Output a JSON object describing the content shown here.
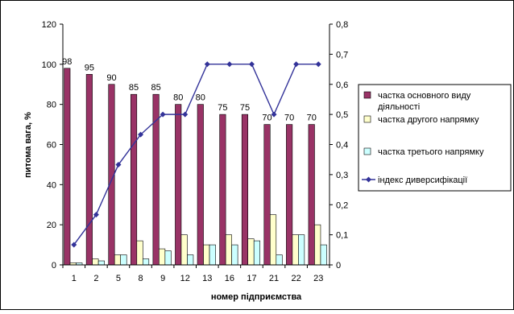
{
  "chart_data": {
    "type": "bar",
    "categories": [
      "1",
      "2",
      "5",
      "8",
      "9",
      "12",
      "13",
      "16",
      "17",
      "21",
      "22",
      "23"
    ],
    "xlabel": "номер підприємства",
    "ylabel": "питома вага, %",
    "ylim": [
      0,
      120
    ],
    "yticks": [
      "0",
      "20",
      "40",
      "60",
      "80",
      "100",
      "120"
    ],
    "y2lim": [
      0,
      0.8
    ],
    "y2ticks": [
      "0",
      "0,1",
      "0,2",
      "0,3",
      "0,4",
      "0,5",
      "0,6",
      "0,7",
      "0,8"
    ],
    "grid": false,
    "legend_position": "right",
    "series": [
      {
        "name": "частка основного виду діяльності",
        "axis": "left",
        "kind": "bar",
        "color": "#993366",
        "values": [
          98,
          95,
          90,
          85,
          85,
          80,
          80,
          75,
          75,
          70,
          70,
          70
        ],
        "data_labels": [
          "98",
          "95",
          "90",
          "85",
          "85",
          "80",
          "80",
          "75",
          "75",
          "70",
          "70",
          "70"
        ]
      },
      {
        "name": "частка другого напрямку",
        "axis": "left",
        "kind": "bar",
        "color": "#FFFFCC",
        "values": [
          1,
          3,
          5,
          12,
          8,
          15,
          10,
          15,
          13,
          25,
          15,
          20
        ]
      },
      {
        "name": "частка третього напрямку",
        "axis": "left",
        "kind": "bar",
        "color": "#CCFFFF",
        "values": [
          1,
          2,
          5,
          3,
          7,
          5,
          10,
          10,
          12,
          5,
          15,
          10
        ]
      },
      {
        "name": "індекс диверсифікації",
        "axis": "right",
        "kind": "line",
        "color": "#333399",
        "values": [
          0.067,
          0.167,
          0.333,
          0.433,
          0.5,
          0.5,
          0.667,
          0.667,
          0.667,
          0.5,
          0.667,
          0.667
        ]
      }
    ]
  }
}
